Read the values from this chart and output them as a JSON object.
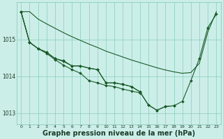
{
  "bg_color": "#cceee8",
  "grid_color": "#88ccbb",
  "line_color": "#1a5c2a",
  "marker_color": "#1a5c2a",
  "xlabel": "Graphe pression niveau de la mer (hPa)",
  "xlabel_fontsize": 7.0,
  "ylim": [
    1012.7,
    1016.0
  ],
  "xlim": [
    -0.5,
    23.5
  ],
  "yticks": [
    1013,
    1014,
    1015
  ],
  "xticks": [
    0,
    1,
    2,
    3,
    4,
    5,
    6,
    7,
    8,
    9,
    10,
    11,
    12,
    13,
    14,
    15,
    16,
    17,
    18,
    19,
    20,
    21,
    22,
    23
  ],
  "series": [
    {
      "x": [
        0,
        1,
        2,
        3,
        4,
        5,
        6,
        7,
        8,
        9,
        10,
        11,
        12,
        13,
        14,
        15,
        16,
        17,
        18,
        19,
        20,
        21,
        22,
        23
      ],
      "y": [
        1015.75,
        1015.75,
        1015.55,
        1015.42,
        1015.3,
        1015.18,
        1015.07,
        1014.97,
        1014.87,
        1014.78,
        1014.68,
        1014.6,
        1014.52,
        1014.44,
        1014.37,
        1014.3,
        1014.23,
        1014.17,
        1014.12,
        1014.08,
        1014.1,
        1014.35,
        1015.2,
        1015.75
      ],
      "has_marker": false
    },
    {
      "x": [
        0,
        1,
        2,
        3,
        4,
        5,
        6,
        7,
        8,
        9,
        10,
        11,
        12,
        13,
        14
      ],
      "y": [
        1015.75,
        1014.92,
        1014.75,
        1014.62,
        1014.45,
        1014.3,
        1014.18,
        1014.08,
        1013.88,
        1013.82,
        1013.75,
        1013.72,
        1013.65,
        1013.6,
        1013.55
      ],
      "has_marker": true
    },
    {
      "x": [
        0,
        1,
        2,
        3,
        4,
        5,
        6,
        7,
        8,
        9,
        10,
        11,
        12,
        13,
        14,
        15,
        16,
        17,
        18,
        19,
        20,
        21,
        22,
        23
      ],
      "y": [
        1015.75,
        1014.92,
        1014.75,
        1014.65,
        1014.48,
        1014.4,
        1014.28,
        1014.28,
        1014.22,
        1014.18,
        1013.82,
        1013.82,
        1013.78,
        1013.72,
        1013.58,
        1013.22,
        1013.08,
        1013.18,
        1013.2,
        1013.32,
        1013.88,
        1014.48,
        1015.32,
        1015.68
      ],
      "has_marker": true
    },
    {
      "x": [
        0,
        1,
        2,
        3,
        4,
        5,
        6,
        7,
        8,
        9,
        10,
        11,
        12,
        13,
        14,
        15,
        16,
        17,
        18
      ],
      "y": [
        1015.75,
        1014.92,
        1014.75,
        1014.65,
        1014.48,
        1014.42,
        1014.28,
        1014.28,
        1014.22,
        1014.18,
        1013.82,
        1013.82,
        1013.78,
        1013.72,
        1013.58,
        1013.22,
        1013.08,
        1013.18,
        1013.2
      ],
      "has_marker": true
    }
  ]
}
